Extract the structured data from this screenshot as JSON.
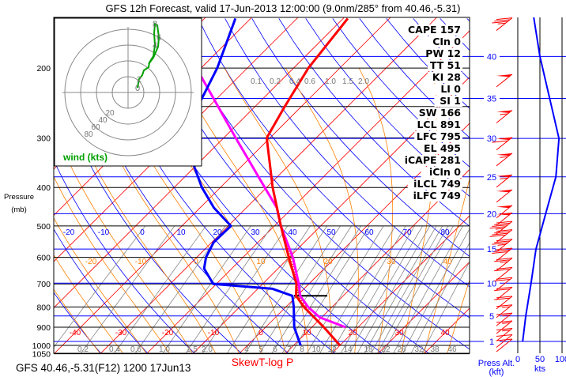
{
  "chart_data": {
    "type": "line",
    "title": "GFS 12h Forecast, valid 17-Jun-2013 12:00:00 (9.0nm/285° from 40.46,-5.31)",
    "subtitle": "GFS 40.46,-5.31(F12) 1200 17Jun13",
    "diagram_label": "SkewT-log P",
    "ylabel": [
      "Pressure",
      "(mb)"
    ],
    "pressure_ticks": [
      "200",
      "300",
      "400",
      "500",
      "600",
      "700",
      "800",
      "900",
      "1000",
      "1050"
    ],
    "pressure_values": [
      200,
      300,
      400,
      500,
      600,
      700,
      800,
      900,
      1000,
      1050
    ],
    "ylim_mb": [
      1050,
      150
    ],
    "isotherm_labels": [
      "-40",
      "-30",
      "-20",
      "-10",
      "0",
      "10",
      "20",
      "30",
      "40"
    ],
    "dry_adiabat_labels": [
      "-20",
      "-10",
      "0",
      "10",
      "20",
      "30",
      "40",
      "50",
      "60",
      "70",
      "80"
    ],
    "moist_adiabat_labels": [
      "-20",
      "-10",
      "0",
      "10",
      "20",
      "30",
      "40"
    ],
    "mixing_ratio_labels_bottom": [
      "0.2",
      "0.4",
      "0.6",
      "1.0",
      "1.5",
      "2.0",
      "4",
      "5",
      "6",
      "7",
      "8",
      "10",
      "12",
      "14",
      "18",
      "22",
      "26",
      "32",
      "38",
      "46"
    ],
    "mixing_ratio_labels_top": [
      "0.1",
      "0.2",
      "0.4",
      "0.6",
      "1.0",
      "1.5",
      "2.0"
    ],
    "series": [
      {
        "name": "Temperature",
        "color": "#ff0000",
        "p": [
          1000,
          900,
          800,
          750,
          700,
          600,
          500,
          400,
          300,
          250,
          200,
          150
        ],
        "t": [
          20,
          12.6,
          3.9,
          -0.2,
          -2.7,
          -10.1,
          -18.6,
          -28.7,
          -40.7,
          -43.6,
          -46.8,
          -49
        ]
      },
      {
        "name": "Dewpoint",
        "color": "#0000ff",
        "p": [
          1000,
          900,
          800,
          750,
          720,
          700,
          640,
          600,
          550,
          500,
          450,
          400,
          350,
          300,
          250,
          200,
          150
        ],
        "t": [
          11.5,
          6.2,
          1.7,
          -1,
          -6.8,
          -20.7,
          -26,
          -28,
          -29.6,
          -29.4,
          -37,
          -44,
          -50.8,
          -56.4,
          -62.4,
          -66.5,
          -73.3
        ]
      },
      {
        "name": "Parcel",
        "color": "#ff00ff",
        "p": [
          900,
          850,
          800,
          750,
          700,
          600,
          500,
          450,
          400,
          300,
          200,
          150
        ],
        "t": [
          17.3,
          9.6,
          4.8,
          0.7,
          -2.2,
          -9.2,
          -18.6,
          -23.4,
          -30.4,
          -47.4,
          -71,
          -87.9
        ]
      }
    ],
    "indices": [
      {
        "label": "CAPE 157"
      },
      {
        "label": "CIn 0"
      },
      {
        "label": "PW 12"
      },
      {
        "label": "TT 51"
      },
      {
        "label": "KI 28"
      },
      {
        "label": "LI 0"
      },
      {
        "label": "SI 1"
      },
      {
        "label": "SW 166"
      },
      {
        "label": "LCL 891"
      },
      {
        "label": "LFC 795"
      },
      {
        "label": "EL 495"
      },
      {
        "label": "iCAPE 281"
      },
      {
        "label": "iCIn 0"
      },
      {
        "label": "iLCL 749"
      },
      {
        "label": "iLFC 749"
      }
    ],
    "height_axis": {
      "label": "Press Alt.",
      "unit": "(kft)",
      "ticks": [
        "40",
        "35",
        "30",
        "25",
        "20",
        "15",
        "10",
        "5",
        "1"
      ],
      "values_kft": [
        40,
        35,
        30,
        25,
        20,
        15,
        10,
        5,
        1
      ]
    },
    "wind_speed_axis": {
      "ticks": [
        "0",
        "50",
        "100"
      ],
      "values": [
        0,
        50,
        100
      ],
      "unit": "kts"
    },
    "wind_speed_profile": {
      "kft": [
        46,
        40,
        30,
        25,
        20,
        15,
        10,
        5,
        1
      ],
      "kts": [
        36,
        50,
        93,
        86,
        63,
        41,
        30,
        18,
        11
      ]
    },
    "wind_barbs": {
      "p": [
        155,
        215,
        265,
        310,
        340,
        385,
        420,
        460,
        480,
        505,
        530,
        560,
        590,
        625,
        660,
        700,
        740,
        780,
        820,
        860,
        900,
        940,
        975,
        1000
      ],
      "kts": [
        35,
        50,
        55,
        60,
        55,
        55,
        50,
        50,
        50,
        45,
        40,
        35,
        30,
        25,
        20,
        20,
        20,
        20,
        15,
        15,
        15,
        15,
        10,
        10
      ]
    },
    "hodograph": {
      "label": "wind (kts)",
      "ring_labels": [
        "20",
        "40",
        "60",
        "80"
      ],
      "ring_values": [
        20,
        40,
        60,
        80
      ],
      "height_labels": [
        "0",
        "2",
        "4",
        "6",
        "8"
      ],
      "u": [
        12,
        13,
        14,
        18,
        20,
        26,
        27,
        32,
        34,
        33,
        34,
        37,
        39,
        38,
        32,
        26
      ],
      "v": [
        6,
        12,
        17,
        22,
        28,
        32,
        38,
        46,
        60,
        75,
        87,
        85,
        70,
        58,
        44,
        36
      ]
    }
  }
}
